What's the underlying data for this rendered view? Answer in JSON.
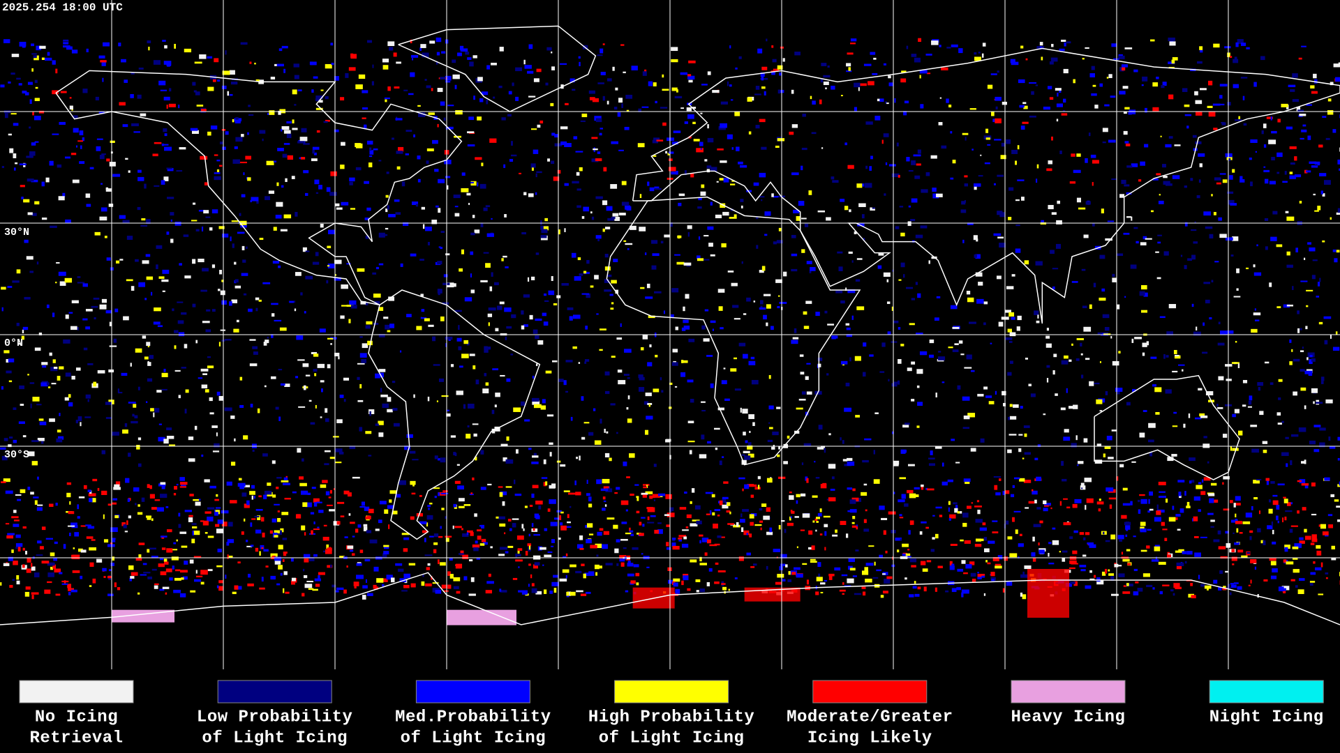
{
  "header": {
    "timestamp": "2025.254 18:00 UTC"
  },
  "map": {
    "latitude_labels": [
      "30°N",
      "0°N",
      "30°S"
    ]
  },
  "legend": [
    {
      "line1": "No Icing",
      "line2": "Retrieval",
      "color": "#f2f2f2"
    },
    {
      "line1": "Low Probability",
      "line2": "of Light Icing",
      "color": "#000080"
    },
    {
      "line1": "Med.Probability",
      "line2": "of Light Icing",
      "color": "#0000ff"
    },
    {
      "line1": "High Probability",
      "line2": "of Light Icing",
      "color": "#ffff00"
    },
    {
      "line1": "Moderate/Greater",
      "line2": "Icing Likely",
      "color": "#ff0000"
    },
    {
      "line1": "Heavy Icing",
      "line2": "",
      "color": "#e8a0e0"
    },
    {
      "line1": "Night Icing",
      "line2": "",
      "color": "#00f0f0"
    }
  ]
}
